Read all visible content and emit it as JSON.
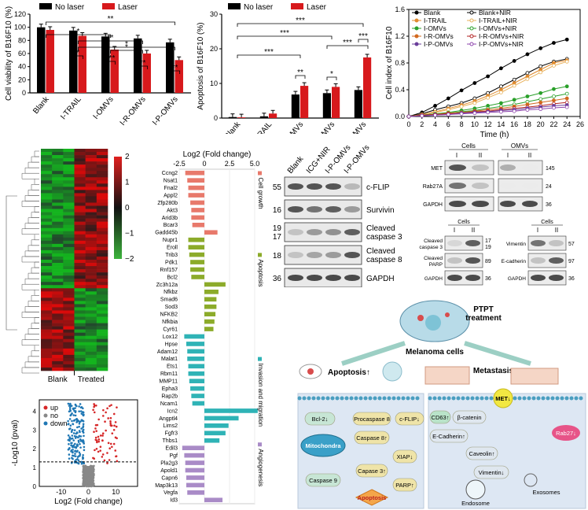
{
  "chart_data": [
    {
      "type": "bar",
      "ylabel": "Cell viability of B16F10 (%)",
      "ylim": [
        0,
        120
      ],
      "yticks": [
        "0",
        "20",
        "40",
        "60",
        "80",
        "100",
        "120"
      ],
      "categories": [
        "Blank",
        "I-TRAIL",
        "I-OMVs",
        "I-R-OMVs",
        "I-P-OMVs"
      ],
      "series": [
        {
          "name": "No laser",
          "color": "#000000",
          "values": [
            100,
            95,
            86,
            83,
            77
          ]
        },
        {
          "name": "Laser",
          "color": "#d7191c",
          "values": [
            96,
            87,
            66,
            60,
            50
          ]
        }
      ],
      "significance": [
        "*",
        "**",
        "*",
        "**",
        "*",
        "*",
        "***",
        "**",
        "**",
        "**"
      ]
    },
    {
      "type": "bar",
      "ylabel": "Apoptosis of B16F10 (%)",
      "ylim": [
        0,
        30
      ],
      "yticks": [
        "0",
        "10",
        "20",
        "30"
      ],
      "categories": [
        "Blank",
        "I-TRAIL",
        "I-OMVs",
        "I-R-OMVs",
        "I-P-OMVs"
      ],
      "series": [
        {
          "name": "No laser",
          "color": "#000000",
          "values": [
            0.3,
            0.5,
            6.8,
            7.2,
            8.1
          ]
        },
        {
          "name": "Laser",
          "color": "#d7191c",
          "values": [
            0.2,
            1.3,
            9.3,
            9.0,
            17.5
          ]
        }
      ],
      "significance": [
        "***",
        "***",
        "***",
        "***",
        "**",
        "*",
        "***"
      ]
    },
    {
      "type": "line",
      "xlabel": "Time (h)",
      "ylabel": "Cell index of B16F10",
      "xlim": [
        0,
        26
      ],
      "ylim": [
        0,
        1.6
      ],
      "xticks": [
        "0",
        "2",
        "4",
        "6",
        "8",
        "10",
        "12",
        "14",
        "16",
        "18",
        "20",
        "22",
        "24",
        "26"
      ],
      "yticks": [
        "0.0",
        "0.4",
        "0.8",
        "1.2",
        "1.6"
      ],
      "x": [
        0,
        2,
        4,
        6,
        8,
        10,
        12,
        14,
        16,
        18,
        20,
        22,
        24
      ],
      "series": [
        {
          "name": "Blank",
          "color": "#000000",
          "values": [
            0,
            0.06,
            0.16,
            0.27,
            0.39,
            0.5,
            0.6,
            0.72,
            0.83,
            0.93,
            1.02,
            1.1,
            1.15
          ]
        },
        {
          "name": "Blank+NIR",
          "color": "#000000",
          "values": [
            0,
            0.04,
            0.1,
            0.15,
            0.2,
            0.27,
            0.35,
            0.45,
            0.55,
            0.65,
            0.75,
            0.82,
            0.86
          ]
        },
        {
          "name": "I-TRAIL",
          "color": "#e08a2e",
          "values": [
            0,
            0.03,
            0.07,
            0.12,
            0.17,
            0.23,
            0.31,
            0.4,
            0.5,
            0.6,
            0.7,
            0.8,
            0.84
          ]
        },
        {
          "name": "I-TRAIL+NIR",
          "color": "#e8b15a",
          "values": [
            0,
            0.03,
            0.06,
            0.1,
            0.15,
            0.2,
            0.28,
            0.36,
            0.46,
            0.56,
            0.66,
            0.76,
            0.82
          ]
        },
        {
          "name": "I-OMVs",
          "color": "#2aa02a",
          "values": [
            0,
            0.02,
            0.04,
            0.06,
            0.09,
            0.12,
            0.16,
            0.2,
            0.25,
            0.3,
            0.35,
            0.41,
            0.45
          ]
        },
        {
          "name": "I-OMVs+NIR",
          "color": "#2aa02a",
          "values": [
            0,
            0.02,
            0.04,
            0.05,
            0.07,
            0.09,
            0.12,
            0.15,
            0.18,
            0.22,
            0.26,
            0.3,
            0.34
          ]
        },
        {
          "name": "I-R-OMVs",
          "color": "#d2691e",
          "values": [
            0,
            0.02,
            0.03,
            0.05,
            0.06,
            0.08,
            0.1,
            0.12,
            0.15,
            0.18,
            0.21,
            0.24,
            0.27
          ]
        },
        {
          "name": "I-R-OMVs+NIR",
          "color": "#b22222",
          "values": [
            0,
            0.02,
            0.03,
            0.04,
            0.05,
            0.07,
            0.08,
            0.1,
            0.12,
            0.14,
            0.16,
            0.19,
            0.21
          ]
        },
        {
          "name": "I-P-OMVs",
          "color": "#6a3d9a",
          "values": [
            0,
            0.01,
            0.02,
            0.03,
            0.05,
            0.06,
            0.07,
            0.09,
            0.1,
            0.12,
            0.14,
            0.16,
            0.17
          ]
        },
        {
          "name": "I-P-OMVs+NIR",
          "color": "#8e44ad",
          "values": [
            0,
            0.01,
            0.02,
            0.03,
            0.04,
            0.05,
            0.06,
            0.07,
            0.08,
            0.1,
            0.11,
            0.13,
            0.14
          ]
        }
      ]
    },
    {
      "type": "bar",
      "orientation": "horizontal",
      "title": "Log2 (Fold change)",
      "xlim": [
        -2.5,
        5.0
      ],
      "xticks": [
        "-2.5",
        "0",
        "2.5",
        "5.0"
      ],
      "categories": [
        "Ccng2",
        "Nsat1",
        "Fnal2",
        "Appl2",
        "Zfp280b",
        "Akt3",
        "Arid3b",
        "Bcar3",
        "Gadd45b",
        "Nupr1",
        "Eroll",
        "Trib3",
        "Pdk1",
        "Rnf157",
        "Bcl2",
        "Zc3h12a",
        "Nfkbz",
        "Smad6",
        "Sod3",
        "NFKB2",
        "Nfkbia",
        "Cyr61",
        "Lox12",
        "Hpse",
        "Adam12",
        "Malat1",
        "Ets1",
        "Rbm11",
        "MMP11",
        "Epha3",
        "Rap2b",
        "Ncam1",
        "Icn2",
        "Angptl4",
        "Lims2",
        "Fgfr3",
        "Thbs1",
        "Edil3",
        "Pgf",
        "Pla2g3",
        "Apold1",
        "Capn6",
        "Map3k13",
        "Vegfa",
        "Id3"
      ],
      "values": [
        -1.9,
        -1.7,
        -1.6,
        -1.6,
        -1.4,
        -1.3,
        -1.3,
        -1.2,
        1.3,
        -1.6,
        -1.6,
        -1.5,
        -1.4,
        -1.4,
        -1.3,
        2.1,
        1.4,
        1.2,
        1.2,
        1.1,
        1.0,
        0.9,
        -2.0,
        -1.8,
        -1.7,
        -1.7,
        -1.6,
        -1.6,
        -1.5,
        -1.4,
        -1.3,
        -1.2,
        5.3,
        3.4,
        2.4,
        2.1,
        1.5,
        -2.2,
        -2.0,
        -1.9,
        -1.9,
        -1.8,
        -1.8,
        -1.7,
        1.8
      ],
      "groups": [
        {
          "name": "Cell growth",
          "color": "#e8796b",
          "count": 9
        },
        {
          "name": "Apoptosis",
          "color": "#8cab2a",
          "count": 13
        },
        {
          "name": "Invasion and migration",
          "color": "#2fb3b6",
          "count": 15
        },
        {
          "name": "Angiogenesis",
          "color": "#a98bc7",
          "count": 8
        }
      ]
    }
  ],
  "heatmap": {
    "scale_ticks": [
      "2",
      "1",
      "0",
      "−1",
      "−2"
    ],
    "groups": [
      "Blank",
      "Treated"
    ]
  },
  "volcano": {
    "ylabel": "-Log10 (pval)",
    "xlabel": "Log2 (Fold change)",
    "xticks": [
      "-10",
      "0",
      "10"
    ],
    "yticks": [
      "0",
      "1",
      "2",
      "3",
      "4"
    ],
    "legend": [
      {
        "label": "up",
        "color": "#d62728"
      },
      {
        "label": "no",
        "color": "#888888"
      },
      {
        "label": "down",
        "color": "#1f77b4"
      }
    ]
  },
  "blot1": {
    "lanes": [
      "Blank",
      "ICG+NIR",
      "I-P-OMVs",
      "I-P-OMVs+NIR"
    ],
    "rows": [
      {
        "kda": "55",
        "label": "c-FLIP"
      },
      {
        "kda": "16",
        "label": "Survivin"
      },
      {
        "kda": "19",
        "kda2": "17",
        "label": "Cleaved\ncaspase 3"
      },
      {
        "kda": "18",
        "label": "Cleaved\ncaspase 8"
      },
      {
        "kda": "36",
        "label": "GAPDH"
      }
    ]
  },
  "blot2": {
    "headers": [
      "Cells",
      "OMVs"
    ],
    "lanes": [
      "I",
      "II",
      "I",
      "II"
    ],
    "rows": [
      {
        "label": "MET",
        "kda": "145"
      },
      {
        "label": "Rab27A",
        "kda": "24"
      },
      {
        "label": "GAPDH",
        "kda": "36"
      }
    ]
  },
  "blot3": {
    "header": "Cells",
    "lanes": [
      "I",
      "II"
    ],
    "rows": [
      {
        "label": "Cleaved\ncaspase 3",
        "kda": "17\n19"
      },
      {
        "label": "Cleaved\nPARP",
        "kda": "89"
      },
      {
        "label": "GAPDH",
        "kda": "36"
      }
    ]
  },
  "blot4": {
    "header": "Cells",
    "lanes": [
      "I",
      "II"
    ],
    "rows": [
      {
        "label": "Vimentin",
        "kda": "57"
      },
      {
        "label": "E-cadherin",
        "kda": "97"
      },
      {
        "label": "GAPDH",
        "kda": "36"
      }
    ]
  },
  "schematic": {
    "treatment": "PTPT\ntreatment",
    "cells": "Melanoma cells",
    "apoptosis": "Apoptosis↑",
    "metastasis": "Metastasis↓",
    "left_nodes": [
      "Bcl-2↓",
      "Mitochondra",
      "Caspase 9",
      "Procaspase 8",
      "c-FLIP↓",
      "Caspase 8↑",
      "XIAP↓",
      "Capase 3↑",
      "PARP↑",
      "Apoptosis"
    ],
    "right_nodes": [
      "MET↓",
      "CD63↑",
      "β-catenin",
      "E-Cadherin↑",
      "Caveolin↑",
      "Vimentin↓",
      "Rab27↓",
      "Exosomes",
      "Endosome"
    ]
  },
  "colors": {
    "red": "#d7191c",
    "black": "#000000",
    "heat_high": "#e0201f",
    "heat_low": "#3cb43c"
  }
}
